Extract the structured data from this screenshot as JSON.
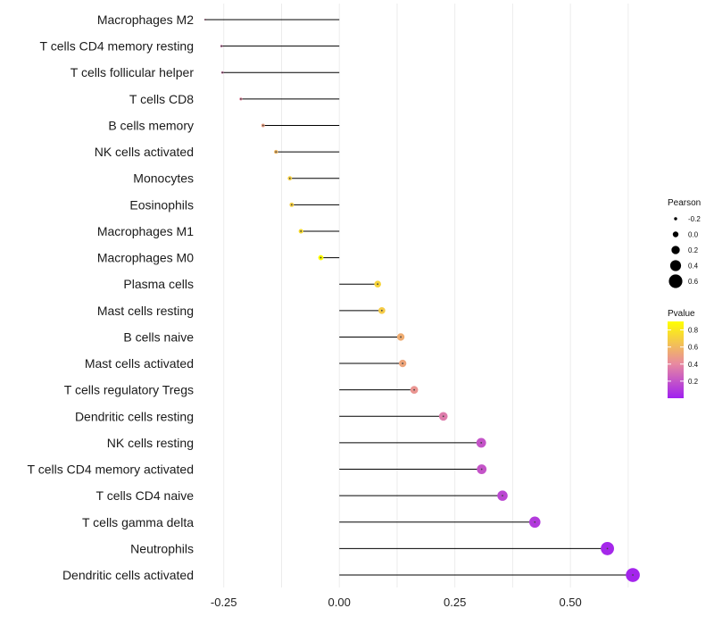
{
  "chart_data": {
    "type": "lollipop",
    "categories": [
      "Macrophages M2",
      "T cells CD4 memory resting",
      "T cells follicular helper",
      "T cells CD8",
      "B cells memory",
      "NK cells activated",
      "Monocytes",
      "Eosinophils",
      "Macrophages M1",
      "Macrophages M0",
      "Plasma cells",
      "Mast cells resting",
      "B cells naive",
      "Mast cells activated",
      "T cells regulatory  Tregs ",
      "Dendritic cells resting",
      "NK cells resting",
      "T cells CD4 memory activated",
      "T cells CD4 naive",
      "T cells gamma delta",
      "Neutrophils",
      "Dendritic cells activated"
    ],
    "pearson": [
      -0.29,
      -0.255,
      -0.253,
      -0.213,
      -0.165,
      -0.137,
      -0.107,
      -0.103,
      -0.083,
      -0.04,
      0.083,
      0.092,
      0.133,
      0.137,
      0.162,
      0.225,
      0.307,
      0.308,
      0.353,
      0.423,
      0.58,
      0.635
    ],
    "pvalue": [
      0.35,
      0.33,
      0.33,
      0.4,
      0.5,
      0.6,
      0.7,
      0.7,
      0.75,
      0.92,
      0.72,
      0.68,
      0.55,
      0.52,
      0.45,
      0.35,
      0.2,
      0.2,
      0.15,
      0.1,
      0.03,
      0.02
    ],
    "xlim": [
      -0.29,
      0.66
    ],
    "xticks": [
      -0.25,
      0.0,
      0.25,
      0.5
    ],
    "xtick_labels": [
      "-0.25",
      "0.00",
      "0.25",
      "0.50"
    ],
    "size_legend": {
      "title": "Pearson",
      "values": [
        -0.2,
        0.0,
        0.2,
        0.4,
        0.6
      ],
      "labels": [
        "-0.2",
        "0.0",
        "0.2",
        "0.4",
        "0.6"
      ]
    },
    "color_legend": {
      "title": "Pvalue",
      "range": [
        0.0,
        0.9
      ],
      "ticks": [
        0.8,
        0.6,
        0.4,
        0.2
      ],
      "labels": [
        "0.8",
        "0.6",
        "0.4",
        "0.2"
      ]
    },
    "colors": {
      "low": "#a020f0",
      "mid": "#e88aa0",
      "high": "#ffff00",
      "grid": "#ececec",
      "stem": "#000000"
    }
  }
}
